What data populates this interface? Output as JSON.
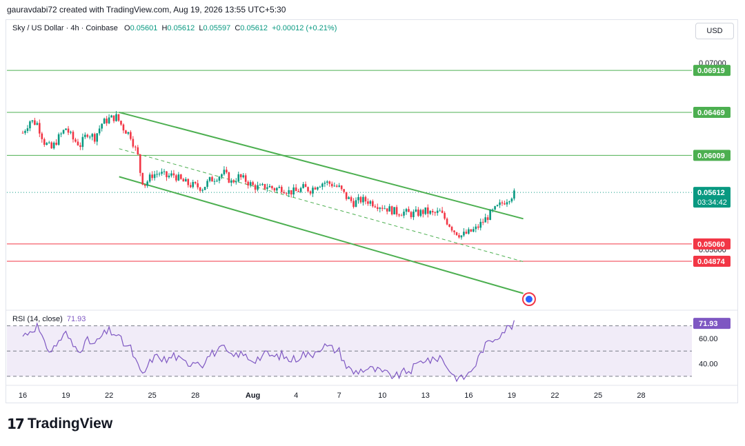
{
  "header": {
    "attribution": "gauravdabi72 created with TradingView.com, Aug 19, 2026 13:55 UTC+5:30"
  },
  "legend": {
    "symbol": "Sky / US Dollar · 4h · Coinbase",
    "open_label": "O",
    "open": "0.05601",
    "high_label": "H",
    "high": "0.05612",
    "low_label": "L",
    "low": "0.05597",
    "close_label": "C",
    "close": "0.05612",
    "change": "+0.00012 (+0.21%)"
  },
  "currency_button": "USD",
  "rsi_legend": {
    "label": "RSI (14, close)",
    "value": "71.93"
  },
  "brand": {
    "name": "TradingView"
  },
  "colors": {
    "up": "#089981",
    "down": "#f23645",
    "support": "#f23645",
    "resistance": "#4caf50",
    "rsi": "#7e57c2",
    "rsi_band": "#ede7f6"
  },
  "chart_data": [
    {
      "type": "candlestick",
      "name": "price",
      "yaxis": {
        "range": [
          0.0435,
          0.0723
        ],
        "tick_labels": [
          "0.07000",
          "0.06500",
          "0.05000"
        ],
        "tick_values": [
          0.07,
          0.065,
          0.05
        ]
      },
      "xaxis": {
        "tick_labels": [
          "16",
          "19",
          "22",
          "25",
          "28",
          "Aug",
          "4",
          "7",
          "10",
          "13",
          "16",
          "19",
          "22",
          "25",
          "28"
        ],
        "tick_day_index": [
          0,
          3,
          6,
          9,
          12,
          16,
          19,
          22,
          25,
          28,
          31,
          34,
          37,
          40,
          43
        ]
      },
      "close_path": [
        [
          0.0,
          0.0625
        ],
        [
          0.5,
          0.0638
        ],
        [
          1.0,
          0.0635
        ],
        [
          1.5,
          0.0615
        ],
        [
          2.0,
          0.0608
        ],
        [
          2.5,
          0.062
        ],
        [
          3.0,
          0.063
        ],
        [
          3.5,
          0.0618
        ],
        [
          4.0,
          0.0612
        ],
        [
          4.5,
          0.0625
        ],
        [
          5.0,
          0.062
        ],
        [
          5.5,
          0.0635
        ],
        [
          6.0,
          0.064
        ],
        [
          6.5,
          0.0642
        ],
        [
          7.0,
          0.063
        ],
        [
          7.5,
          0.0622
        ],
        [
          8.0,
          0.06
        ],
        [
          8.25,
          0.0575
        ],
        [
          8.5,
          0.057
        ],
        [
          9.0,
          0.058
        ],
        [
          9.5,
          0.0582
        ],
        [
          10.0,
          0.0578
        ],
        [
          10.5,
          0.058
        ],
        [
          11.0,
          0.0574
        ],
        [
          11.5,
          0.057
        ],
        [
          12.0,
          0.0568
        ],
        [
          12.5,
          0.0566
        ],
        [
          13.0,
          0.0574
        ],
        [
          13.5,
          0.0578
        ],
        [
          14.0,
          0.0582
        ],
        [
          14.5,
          0.0572
        ],
        [
          15.0,
          0.0578
        ],
        [
          15.5,
          0.0574
        ],
        [
          16.0,
          0.0568
        ],
        [
          16.5,
          0.0566
        ],
        [
          17.0,
          0.0568
        ],
        [
          17.5,
          0.0565
        ],
        [
          18.0,
          0.0566
        ],
        [
          18.5,
          0.0562
        ],
        [
          19.0,
          0.0562
        ],
        [
          19.5,
          0.0566
        ],
        [
          20.0,
          0.0564
        ],
        [
          20.5,
          0.057
        ],
        [
          21.0,
          0.0572
        ],
        [
          21.5,
          0.057
        ],
        [
          22.0,
          0.0566
        ],
        [
          22.5,
          0.0556
        ],
        [
          23.0,
          0.055
        ],
        [
          23.5,
          0.0553
        ],
        [
          24.0,
          0.0552
        ],
        [
          24.5,
          0.0549
        ],
        [
          25.0,
          0.0546
        ],
        [
          25.5,
          0.0543
        ],
        [
          26.0,
          0.054
        ],
        [
          26.5,
          0.054
        ],
        [
          27.0,
          0.0538
        ],
        [
          27.5,
          0.0539
        ],
        [
          28.0,
          0.0541
        ],
        [
          28.5,
          0.0538
        ],
        [
          29.0,
          0.054
        ],
        [
          29.5,
          0.053
        ],
        [
          30.0,
          0.052
        ],
        [
          30.5,
          0.0515
        ],
        [
          31.0,
          0.0518
        ],
        [
          31.5,
          0.0522
        ],
        [
          32.0,
          0.053
        ],
        [
          32.5,
          0.0538
        ],
        [
          33.0,
          0.0545
        ],
        [
          33.5,
          0.0552
        ],
        [
          34.0,
          0.0558
        ],
        [
          34.33,
          0.05612
        ]
      ],
      "lines": [
        {
          "kind": "resistance",
          "value": 0.06919,
          "label": "0.06919"
        },
        {
          "kind": "resistance",
          "value": 0.06469,
          "label": "0.06469"
        },
        {
          "kind": "resistance",
          "value": 0.06009,
          "label": "0.06009"
        },
        {
          "kind": "support",
          "value": 0.0506,
          "label": "0.05060"
        },
        {
          "kind": "support",
          "value": 0.04874,
          "label": "0.04874"
        }
      ],
      "last_price": {
        "value": 0.05612,
        "label": "0.05612",
        "countdown": "03:34:42"
      },
      "channel": {
        "upper": [
          [
            6.7,
            0.0647
          ],
          [
            34.8,
            0.0533
          ]
        ],
        "lower": [
          [
            6.7,
            0.0578
          ],
          [
            34.8,
            0.0453
          ]
        ],
        "mid_dashed": [
          [
            6.7,
            0.0608
          ],
          [
            34.8,
            0.0487
          ]
        ]
      }
    },
    {
      "type": "line",
      "name": "RSI",
      "yaxis": {
        "range": [
          25,
          78
        ],
        "tick_labels": [
          "60.00",
          "40.00"
        ],
        "tick_values": [
          60,
          40
        ],
        "band": [
          30,
          70
        ]
      },
      "current": {
        "value": 71.93,
        "label": "71.93"
      },
      "path": [
        [
          0.0,
          62
        ],
        [
          0.5,
          66
        ],
        [
          1.0,
          70
        ],
        [
          1.5,
          55
        ],
        [
          2.0,
          50
        ],
        [
          2.5,
          58
        ],
        [
          3.0,
          64
        ],
        [
          3.5,
          54
        ],
        [
          4.0,
          52
        ],
        [
          4.5,
          58
        ],
        [
          5.0,
          55
        ],
        [
          5.5,
          62
        ],
        [
          6.0,
          66
        ],
        [
          6.5,
          63
        ],
        [
          7.0,
          56
        ],
        [
          7.5,
          52
        ],
        [
          8.0,
          38
        ],
        [
          8.25,
          30
        ],
        [
          8.5,
          34
        ],
        [
          9.0,
          44
        ],
        [
          9.5,
          46
        ],
        [
          10.0,
          42
        ],
        [
          10.5,
          47
        ],
        [
          11.0,
          42
        ],
        [
          11.5,
          40
        ],
        [
          12.0,
          43
        ],
        [
          12.5,
          40
        ],
        [
          13.0,
          47
        ],
        [
          13.5,
          50
        ],
        [
          14.0,
          52
        ],
        [
          14.5,
          45
        ],
        [
          15.0,
          48
        ],
        [
          15.5,
          46
        ],
        [
          16.0,
          43
        ],
        [
          16.5,
          45
        ],
        [
          17.0,
          48
        ],
        [
          17.5,
          45
        ],
        [
          18.0,
          47
        ],
        [
          18.5,
          43
        ],
        [
          19.0,
          44
        ],
        [
          19.5,
          48
        ],
        [
          20.0,
          46
        ],
        [
          20.5,
          52
        ],
        [
          21.0,
          54
        ],
        [
          21.5,
          52
        ],
        [
          22.0,
          50
        ],
        [
          22.5,
          38
        ],
        [
          23.0,
          33
        ],
        [
          23.5,
          35
        ],
        [
          24.0,
          36
        ],
        [
          24.5,
          35
        ],
        [
          25.0,
          33
        ],
        [
          25.5,
          31
        ],
        [
          26.0,
          30
        ],
        [
          26.5,
          33
        ],
        [
          27.0,
          35
        ],
        [
          27.5,
          40
        ],
        [
          28.0,
          44
        ],
        [
          28.5,
          42
        ],
        [
          29.0,
          46
        ],
        [
          29.5,
          38
        ],
        [
          30.0,
          30
        ],
        [
          30.5,
          28
        ],
        [
          31.0,
          32
        ],
        [
          31.5,
          40
        ],
        [
          32.0,
          52
        ],
        [
          32.5,
          58
        ],
        [
          33.0,
          62
        ],
        [
          33.5,
          67
        ],
        [
          34.0,
          70
        ],
        [
          34.33,
          71.93
        ]
      ]
    }
  ]
}
